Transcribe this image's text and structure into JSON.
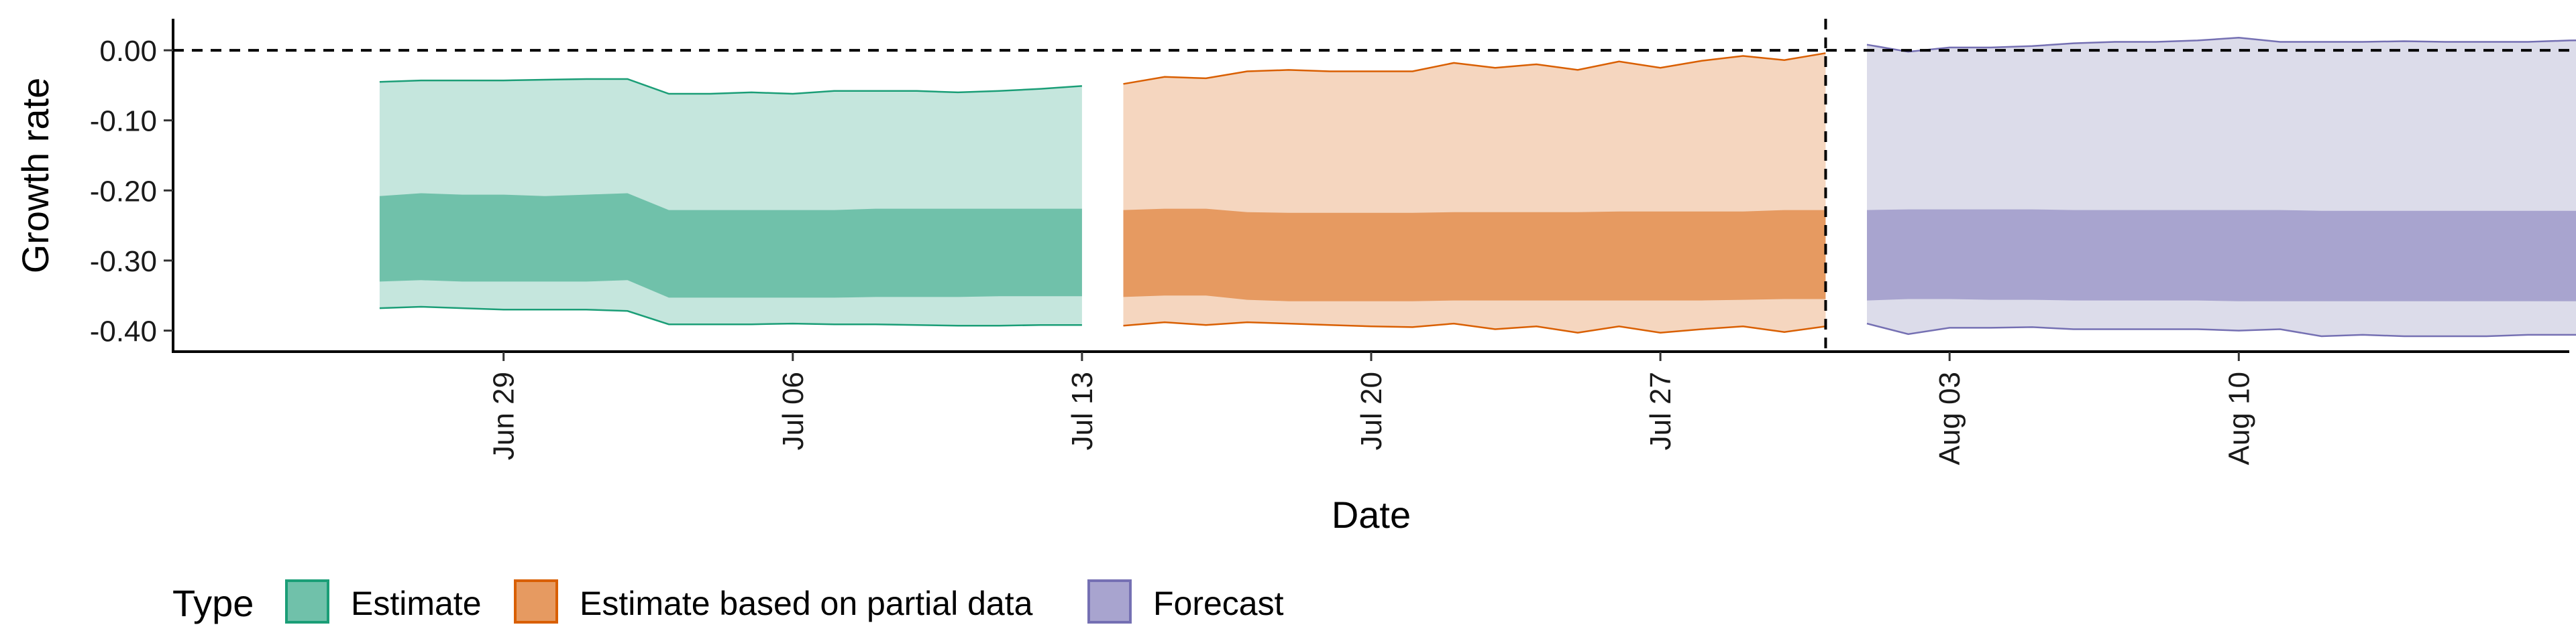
{
  "chart_data": {
    "type": "area",
    "xlabel": "Date",
    "ylabel": "Growth rate",
    "ylim": [
      -0.43,
      0.045
    ],
    "y_ticks": [
      0.0,
      -0.1,
      -0.2,
      -0.3,
      -0.4
    ],
    "y_tick_labels": [
      "0.00",
      "-0.10",
      "-0.20",
      "-0.30",
      "-0.40"
    ],
    "x_ticks": [
      "2020-06-29",
      "2020-07-06",
      "2020-07-13",
      "2020-07-20",
      "2020-07-27",
      "2020-08-03",
      "2020-08-10"
    ],
    "x_tick_labels": [
      "Jun 29",
      "Jul 06",
      "Jul 13",
      "Jul 20",
      "Jul 27",
      "Aug 03",
      "Aug 10"
    ],
    "xlim": [
      "2020-06-21",
      "2020-08-18"
    ],
    "reference_lines": {
      "horizontal_y": 0.0,
      "vertical_x": "2020-07-31"
    },
    "grid": false,
    "legend": {
      "title": "Type",
      "placement": "bottom",
      "entries": [
        "Estimate",
        "Estimate based on partial data",
        "Forecast"
      ]
    },
    "series": [
      {
        "name": "Estimate",
        "fill_outer": "#c5e6dd",
        "fill_inner": "#70c1aa",
        "line": "#1b9e77",
        "x": [
          "2020-06-26",
          "2020-06-27",
          "2020-06-28",
          "2020-06-29",
          "2020-06-30",
          "2020-07-01",
          "2020-07-02",
          "2020-07-03",
          "2020-07-04",
          "2020-07-05",
          "2020-07-06",
          "2020-07-07",
          "2020-07-08",
          "2020-07-09",
          "2020-07-10",
          "2020-07-11",
          "2020-07-12",
          "2020-07-13"
        ],
        "upper_90": [
          -0.045,
          -0.043,
          -0.043,
          -0.043,
          -0.042,
          -0.041,
          -0.041,
          -0.062,
          -0.062,
          -0.06,
          -0.062,
          -0.058,
          -0.058,
          -0.058,
          -0.06,
          -0.058,
          -0.055,
          -0.051
        ],
        "upper_50": [
          -0.208,
          -0.204,
          -0.206,
          -0.206,
          -0.208,
          -0.206,
          -0.204,
          -0.228,
          -0.228,
          -0.228,
          -0.228,
          -0.228,
          -0.226,
          -0.226,
          -0.226,
          -0.226,
          -0.226,
          -0.226
        ],
        "lower_50": [
          -0.33,
          -0.328,
          -0.33,
          -0.33,
          -0.33,
          -0.33,
          -0.328,
          -0.353,
          -0.353,
          -0.353,
          -0.353,
          -0.353,
          -0.352,
          -0.352,
          -0.352,
          -0.351,
          -0.351,
          -0.351
        ],
        "lower_90": [
          -0.368,
          -0.366,
          -0.368,
          -0.37,
          -0.37,
          -0.37,
          -0.372,
          -0.391,
          -0.391,
          -0.391,
          -0.39,
          -0.391,
          -0.391,
          -0.392,
          -0.393,
          -0.393,
          -0.392,
          -0.392
        ]
      },
      {
        "name": "Estimate based on partial data",
        "fill_outer": "#f5d6bf",
        "fill_inner": "#e69a61",
        "line": "#d95f02",
        "x": [
          "2020-07-14",
          "2020-07-15",
          "2020-07-16",
          "2020-07-17",
          "2020-07-18",
          "2020-07-19",
          "2020-07-20",
          "2020-07-21",
          "2020-07-22",
          "2020-07-23",
          "2020-07-24",
          "2020-07-25",
          "2020-07-26",
          "2020-07-27",
          "2020-07-28",
          "2020-07-29",
          "2020-07-30",
          "2020-07-31"
        ],
        "upper_90": [
          -0.048,
          -0.038,
          -0.04,
          -0.03,
          -0.028,
          -0.03,
          -0.03,
          -0.03,
          -0.018,
          -0.025,
          -0.02,
          -0.028,
          -0.016,
          -0.025,
          -0.015,
          -0.008,
          -0.014,
          -0.004
        ],
        "upper_50": [
          -0.228,
          -0.226,
          -0.226,
          -0.231,
          -0.232,
          -0.232,
          -0.232,
          -0.232,
          -0.231,
          -0.231,
          -0.231,
          -0.231,
          -0.23,
          -0.23,
          -0.23,
          -0.23,
          -0.228,
          -0.228
        ],
        "lower_50": [
          -0.352,
          -0.35,
          -0.35,
          -0.356,
          -0.358,
          -0.358,
          -0.358,
          -0.358,
          -0.357,
          -0.357,
          -0.357,
          -0.357,
          -0.357,
          -0.357,
          -0.357,
          -0.356,
          -0.355,
          -0.355
        ],
        "lower_90": [
          -0.393,
          -0.388,
          -0.392,
          -0.388,
          -0.39,
          -0.392,
          -0.394,
          -0.395,
          -0.39,
          -0.398,
          -0.394,
          -0.403,
          -0.394,
          -0.403,
          -0.398,
          -0.394,
          -0.402,
          -0.394
        ]
      },
      {
        "name": "Forecast",
        "fill_outer": "#dcdcea",
        "fill_inner": "#a8a4cf",
        "line": "#7570b3",
        "x": [
          "2020-08-01",
          "2020-08-02",
          "2020-08-03",
          "2020-08-04",
          "2020-08-05",
          "2020-08-06",
          "2020-08-07",
          "2020-08-08",
          "2020-08-09",
          "2020-08-10",
          "2020-08-11",
          "2020-08-12",
          "2020-08-13",
          "2020-08-14",
          "2020-08-15",
          "2020-08-16",
          "2020-08-17",
          "2020-08-18",
          "2020-08-19"
        ],
        "upper_90": [
          0.008,
          -0.002,
          0.004,
          0.004,
          0.006,
          0.01,
          0.012,
          0.012,
          0.014,
          0.018,
          0.012,
          0.012,
          0.012,
          0.013,
          0.012,
          0.012,
          0.012,
          0.014,
          0.015
        ],
        "upper_50": [
          -0.228,
          -0.227,
          -0.227,
          -0.227,
          -0.227,
          -0.228,
          -0.228,
          -0.228,
          -0.228,
          -0.228,
          -0.228,
          -0.229,
          -0.229,
          -0.229,
          -0.229,
          -0.229,
          -0.229,
          -0.229,
          -0.229
        ],
        "lower_50": [
          -0.357,
          -0.355,
          -0.355,
          -0.356,
          -0.356,
          -0.357,
          -0.357,
          -0.357,
          -0.357,
          -0.358,
          -0.358,
          -0.358,
          -0.358,
          -0.358,
          -0.358,
          -0.358,
          -0.358,
          -0.358,
          -0.358
        ],
        "lower_90": [
          -0.39,
          -0.405,
          -0.396,
          -0.396,
          -0.395,
          -0.398,
          -0.398,
          -0.398,
          -0.398,
          -0.4,
          -0.398,
          -0.408,
          -0.406,
          -0.408,
          -0.408,
          -0.408,
          -0.406,
          -0.406,
          -0.406
        ]
      }
    ]
  }
}
